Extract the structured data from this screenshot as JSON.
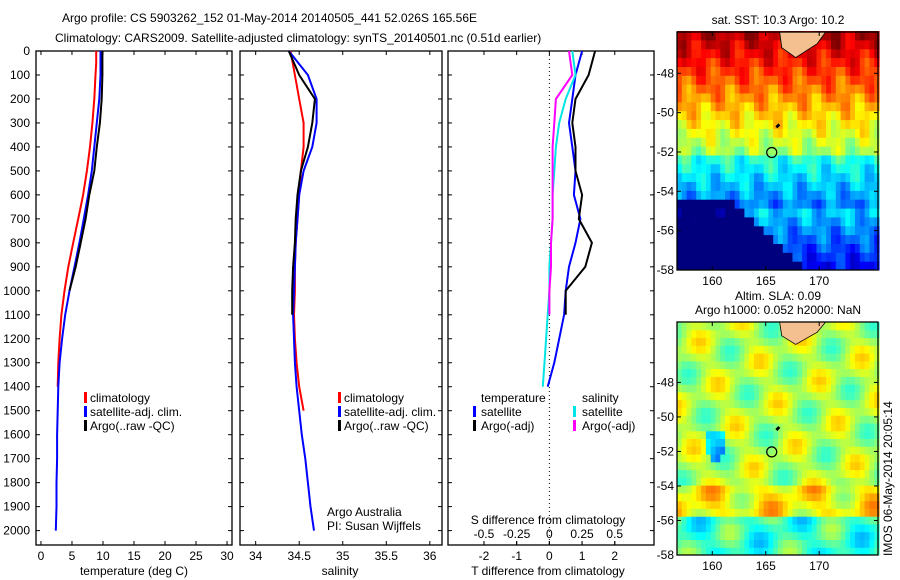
{
  "header": {
    "line1": "Argo profile: CS 5903262_152 01-May-2014 20140505_441 52.026S 165.56E",
    "line2": "Climatology: CARS2009. Satellite-adjusted climatology: synTS_20140501.nc (0.51d earlier)"
  },
  "colors": {
    "climatology": "#ff0000",
    "satellite": "#0000ff",
    "argo": "#000000",
    "sal_satellite": "#00e5e5",
    "sal_argo": "#ff00ff"
  },
  "chart_data": [
    {
      "type": "line",
      "id": "temperature",
      "xlabel": "temperature (deg C)",
      "ylabel": "",
      "xlim": [
        -0.8,
        30.8
      ],
      "ylim": [
        2060,
        0
      ],
      "xticks": [
        "0",
        "5",
        "10",
        "15",
        "20",
        "25",
        "30"
      ],
      "xtick_values": [
        0,
        5,
        10,
        15,
        20,
        25,
        30
      ],
      "yticks": [
        "0",
        "100",
        "200",
        "300",
        "400",
        "500",
        "600",
        "700",
        "800",
        "900",
        "1000",
        "1100",
        "1200",
        "1300",
        "1400",
        "1500",
        "1600",
        "1700",
        "1800",
        "1900",
        "2000"
      ],
      "legend": [
        "climatology",
        "satellite-adj. clim.",
        "Argo(..raw -QC)"
      ],
      "series": [
        {
          "name": "climatology",
          "color": "#ff0000",
          "depth": [
            0,
            50,
            100,
            200,
            300,
            400,
            500,
            600,
            700,
            800,
            900,
            1000,
            1100,
            1200,
            1300,
            1400
          ],
          "values": [
            8.9,
            8.9,
            8.8,
            8.6,
            8.3,
            7.9,
            7.4,
            6.8,
            6.0,
            5.2,
            4.4,
            3.8,
            3.3,
            3.0,
            2.8,
            2.7
          ]
        },
        {
          "name": "satellite-adj. clim.",
          "color": "#0000ff",
          "depth": [
            0,
            100,
            200,
            300,
            400,
            500,
            600,
            700,
            800,
            900,
            1000,
            1100,
            1200,
            1300,
            1400,
            1500,
            1600,
            1700,
            1800,
            1900,
            2000
          ],
          "values": [
            9.6,
            9.6,
            9.4,
            9.0,
            8.6,
            8.2,
            7.6,
            6.9,
            6.2,
            5.4,
            4.6,
            3.9,
            3.4,
            3.0,
            2.8,
            2.7,
            2.6,
            2.6,
            2.5,
            2.5,
            2.4
          ]
        },
        {
          "name": "Argo(..raw -QC)",
          "color": "#000000",
          "depth": [
            0,
            100,
            200,
            300,
            400,
            500,
            600,
            700,
            800,
            900,
            1000
          ],
          "values": [
            9.9,
            9.9,
            9.8,
            9.5,
            9.0,
            8.6,
            7.8,
            7.2,
            6.4,
            5.6,
            4.6
          ]
        }
      ]
    },
    {
      "type": "line",
      "id": "salinity",
      "xlabel": "salinity",
      "xlim": [
        33.82,
        36.14
      ],
      "ylim": [
        2060,
        0
      ],
      "xticks": [
        "34",
        "34.5",
        "35",
        "35.5",
        "36"
      ],
      "xtick_values": [
        34,
        34.5,
        35,
        35.5,
        36
      ],
      "legend": [
        "climatology",
        "satellite-adj. clim.",
        "Argo(..raw -QC)"
      ],
      "annotation": [
        "Argo Australia",
        "PI: Susan Wijffels"
      ],
      "series": [
        {
          "name": "climatology",
          "color": "#ff0000",
          "depth": [
            0,
            100,
            200,
            300,
            400,
            500,
            600,
            700,
            800,
            900,
            1000,
            1100,
            1200,
            1300,
            1400,
            1500
          ],
          "values": [
            34.4,
            34.45,
            34.5,
            34.55,
            34.55,
            34.52,
            34.5,
            34.48,
            34.46,
            34.45,
            34.45,
            34.44,
            34.45,
            34.47,
            34.5,
            34.55
          ]
        },
        {
          "name": "satellite-adj. clim.",
          "color": "#0000ff",
          "depth": [
            0,
            100,
            200,
            300,
            400,
            500,
            600,
            700,
            800,
            900,
            1000,
            1100,
            1200,
            1300,
            1400,
            1500,
            1600,
            1700,
            1800,
            1900,
            2000
          ],
          "values": [
            34.38,
            34.6,
            34.7,
            34.7,
            34.65,
            34.55,
            34.5,
            34.48,
            34.46,
            34.45,
            34.44,
            34.43,
            34.44,
            34.45,
            34.47,
            34.5,
            34.53,
            34.57,
            34.6,
            34.63,
            34.67
          ]
        },
        {
          "name": "Argo(..raw -QC)",
          "color": "#000000",
          "depth": [
            0,
            100,
            200,
            300,
            400,
            500,
            600,
            700,
            800,
            900,
            1000,
            1100
          ],
          "values": [
            34.38,
            34.5,
            34.68,
            34.65,
            34.6,
            34.52,
            34.48,
            34.46,
            34.45,
            34.43,
            34.42,
            34.42
          ]
        }
      ]
    },
    {
      "type": "line",
      "id": "difference",
      "xlabel": "T difference from climatology",
      "x2label": "S difference from climatology",
      "xlim": [
        -3.1,
        3.2
      ],
      "ylim": [
        2060,
        0
      ],
      "xticks": [
        "-2",
        "-1",
        "0",
        "1",
        "2"
      ],
      "xtick_values": [
        -2,
        -1,
        0,
        1,
        2
      ],
      "x2ticks": [
        "-0.5",
        "-0.25",
        "0",
        "0.25",
        "0.5"
      ],
      "x2tick_values": [
        -0.5,
        -0.25,
        0,
        0.25,
        0.5
      ],
      "legend_headers": [
        "temperature",
        "salinity"
      ],
      "legend": [
        "satellite",
        "Argo(-adj)",
        "satellite",
        "Argo(-adj)"
      ],
      "series": [
        {
          "name": "temperature satellite",
          "color": "#0000ff",
          "depth": [
            0,
            100,
            200,
            300,
            400,
            500,
            600,
            700,
            800,
            900,
            1000,
            1100,
            1200,
            1300,
            1400
          ],
          "values": [
            1.0,
            0.8,
            0.7,
            0.6,
            0.7,
            0.8,
            0.75,
            0.95,
            0.8,
            0.6,
            0.5,
            0.45,
            0.3,
            0.15,
            -0.05
          ]
        },
        {
          "name": "temperature Argo(-adj)",
          "color": "#000000",
          "depth": [
            0,
            100,
            200,
            300,
            400,
            500,
            600,
            700,
            800,
            900,
            1000,
            1100
          ],
          "values": [
            1.4,
            1.2,
            0.8,
            0.7,
            0.8,
            0.8,
            1.0,
            0.9,
            1.3,
            1.1,
            0.5,
            0.5
          ]
        },
        {
          "name": "salinity satellite",
          "color": "#00e5e5",
          "depth": [
            0,
            100,
            200,
            300,
            400,
            500,
            600,
            700,
            800,
            900,
            1000,
            1100,
            1200,
            1300,
            1400
          ],
          "values": [
            0.7,
            0.8,
            0.5,
            0.3,
            0.2,
            0.15,
            0.1,
            0.1,
            0.05,
            0.0,
            0.0,
            -0.05,
            -0.1,
            -0.15,
            -0.2
          ]
        },
        {
          "name": "salinity Argo(-adj)",
          "color": "#ff00ff",
          "depth": [
            0,
            100,
            200,
            300,
            400,
            500,
            600,
            700,
            800,
            900,
            1000,
            1100
          ],
          "values": [
            0.6,
            0.7,
            0.2,
            0.15,
            0.1,
            0.1,
            0.1,
            0.1,
            0.05,
            0.05,
            0.0,
            0.0
          ]
        }
      ]
    },
    {
      "type": "heatmap",
      "id": "sst_map",
      "title": "sat. SST: 10.3 Argo: 10.2",
      "xticks": [
        "160",
        "165",
        "170"
      ],
      "xtick_values": [
        160,
        165,
        170
      ],
      "yticks": [
        "-48",
        "-50",
        "-52",
        "-54",
        "-56",
        "-58"
      ],
      "ytick_values": [
        -48,
        -50,
        -52,
        -54,
        -56,
        -58
      ],
      "xlim": [
        156.7,
        175.5
      ],
      "ylim": [
        -58,
        -45.9
      ],
      "profile_location": [
        165.56,
        -52.026
      ]
    },
    {
      "type": "heatmap",
      "id": "sla_map",
      "title1": "Altim. SLA: 0.09",
      "title2": "Argo h1000: 0.052 h2000: NaN",
      "xticks": [
        "160",
        "165",
        "170"
      ],
      "xtick_values": [
        160,
        165,
        170
      ],
      "yticks": [
        "-48",
        "-50",
        "-52",
        "-54",
        "-56",
        "-58"
      ],
      "ytick_values": [
        -48,
        -50,
        -52,
        -54,
        -56,
        -58
      ],
      "xlim": [
        156.7,
        175.5
      ],
      "ylim": [
        -58,
        -44.5
      ],
      "profile_location": [
        165.56,
        -52.026
      ]
    }
  ],
  "credit": "IMOS 06-May-2014 20:05:14"
}
